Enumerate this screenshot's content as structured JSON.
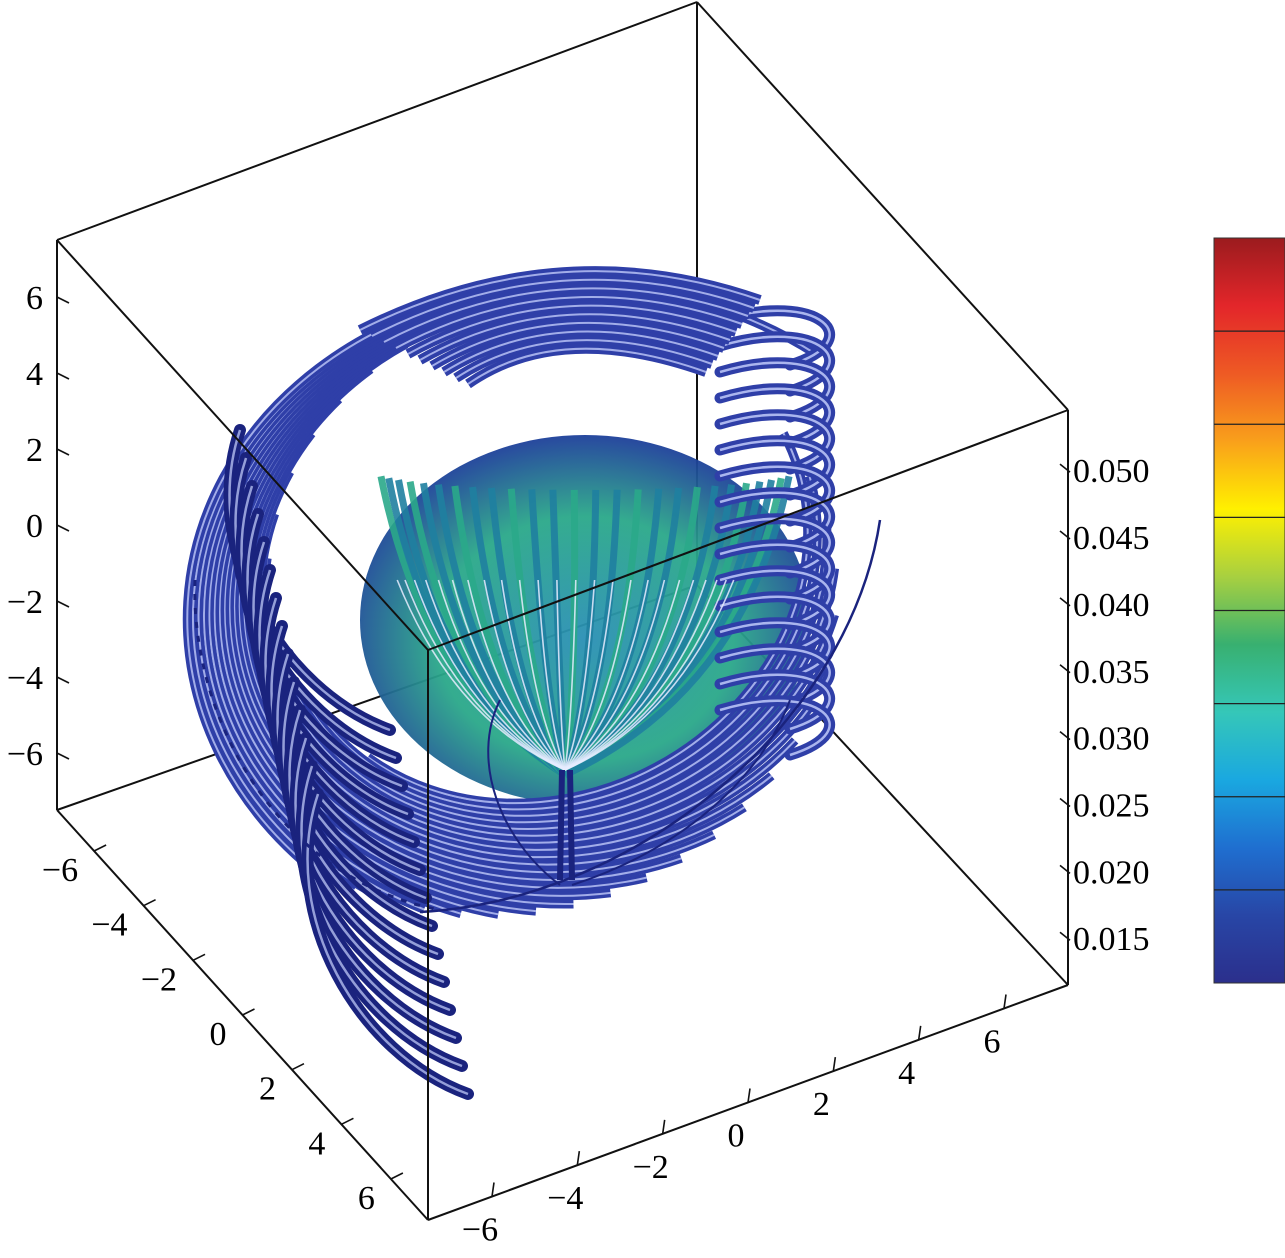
{
  "chart_data": {
    "type": "3d-streamtube",
    "title": "",
    "x_axis": {
      "ticks": [
        -6,
        -4,
        -2,
        0,
        2,
        4,
        6
      ],
      "tick_labels": [
        "−6",
        "−4",
        "−2",
        "0",
        "2",
        "4",
        "6"
      ],
      "range": [
        -7.5,
        7.5
      ]
    },
    "y_axis": {
      "ticks": [
        -6,
        -4,
        -2,
        0,
        2,
        4,
        6
      ],
      "tick_labels": [
        "−6",
        "−4",
        "−2",
        "0",
        "2",
        "4",
        "6"
      ],
      "range": [
        -7.5,
        7.5
      ]
    },
    "z_axis": {
      "ticks": [
        -6,
        -4,
        -2,
        0,
        2,
        4,
        6
      ],
      "tick_labels": [
        "−6",
        "−4",
        "−2",
        "0",
        "2",
        "4",
        "6"
      ],
      "range": [
        -7.5,
        7.5
      ]
    },
    "colorbar": {
      "ticks": [
        0.015,
        0.02,
        0.025,
        0.03,
        0.035,
        0.04,
        0.045,
        0.05
      ],
      "tick_labels": [
        "0.015",
        "0.020",
        "0.025",
        "0.030",
        "0.035",
        "0.040",
        "0.045",
        "0.050"
      ],
      "range": [
        0.0115,
        0.0545
      ],
      "colors": [
        "#2b2f8c",
        "#2846a6",
        "#1f6fd0",
        "#1aa8e0",
        "#35c7b8",
        "#38b070",
        "#a8d040",
        "#fff000",
        "#f9a01b",
        "#ee5a24",
        "#e3262a",
        "#9b1b1e"
      ],
      "placement": "right"
    },
    "colors": {
      "tube_dark": "#1a237e",
      "tube_mid": "#2f3fa8",
      "tube_highlight": "#c9d3ff",
      "inner_green": "#2aa889",
      "inner_teal": "#1f7fa0"
    }
  }
}
